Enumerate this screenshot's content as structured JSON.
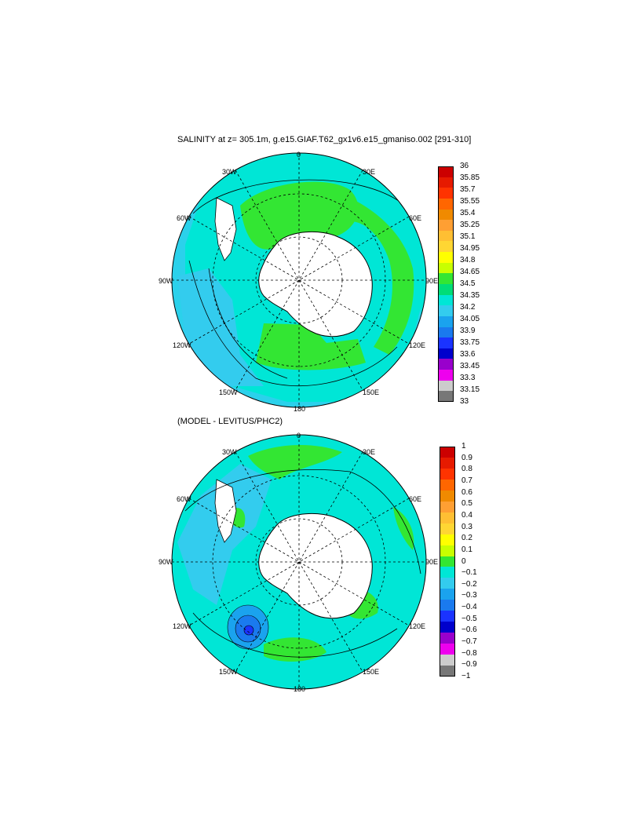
{
  "panel1": {
    "title": "SALINITY at z= 305.1m, g.e15.GIAF.T62_gx1v6.e15_gmaniso.002 [291-310]",
    "lon_labels": {
      "top": "0",
      "tl": "30W",
      "tr": "30E",
      "ml": "60W",
      "mr": "60E",
      "l": "90W",
      "r": "90E",
      "bl1": "120W",
      "br1": "120E",
      "bl2": "150W",
      "br2": "150E",
      "bottom": "180"
    },
    "colorbar": {
      "labels": [
        "36",
        "35.85",
        "35.7",
        "35.55",
        "35.4",
        "35.25",
        "35.1",
        "34.95",
        "34.8",
        "34.65",
        "34.5",
        "34.35",
        "34.2",
        "34.05",
        "33.9",
        "33.75",
        "33.6",
        "33.45",
        "33.3",
        "33.15",
        "33"
      ],
      "colors": [
        "#cc0000",
        "#e61a00",
        "#ff3300",
        "#ff6600",
        "#f08a00",
        "#ff9f33",
        "#ffbf33",
        "#ffd633",
        "#ffff00",
        "#c8ff00",
        "#33e633",
        "#00dd77",
        "#00e6d6",
        "#33ccee",
        "#1aa3ee",
        "#1a7aee",
        "#1a33ff",
        "#0000cc",
        "#9900cc",
        "#ee00ee",
        "#cccccc",
        "#777777"
      ]
    }
  },
  "panel2": {
    "title": "(MODEL - LEVITUS/PHC2)",
    "lon_labels": {
      "top": "0",
      "tl": "30W",
      "tr": "30E",
      "ml": "60W",
      "mr": "60E",
      "l": "90W",
      "r": "90E",
      "bl1": "120W",
      "br1": "120E",
      "bl2": "150W",
      "br2": "150E",
      "bottom": "180"
    },
    "colorbar": {
      "labels": [
        "1",
        "0.9",
        "0.8",
        "0.7",
        "0.6",
        "0.5",
        "0.4",
        "0.3",
        "0.2",
        "0.1",
        "0",
        "−0.1",
        "−0.2",
        "−0.3",
        "−0.4",
        "−0.5",
        "−0.6",
        "−0.7",
        "−0.8",
        "−0.9",
        "−1"
      ],
      "colors": [
        "#cc0000",
        "#e61a00",
        "#ff3300",
        "#ff6600",
        "#f08a00",
        "#ff9f33",
        "#ffbf33",
        "#ffd633",
        "#ffff00",
        "#c8ff00",
        "#33e633",
        "#00e6d6",
        "#33ccee",
        "#1aa3ee",
        "#1a7aee",
        "#1a33ff",
        "#0000cc",
        "#9900cc",
        "#ee00ee",
        "#cccccc",
        "#777777"
      ]
    }
  }
}
